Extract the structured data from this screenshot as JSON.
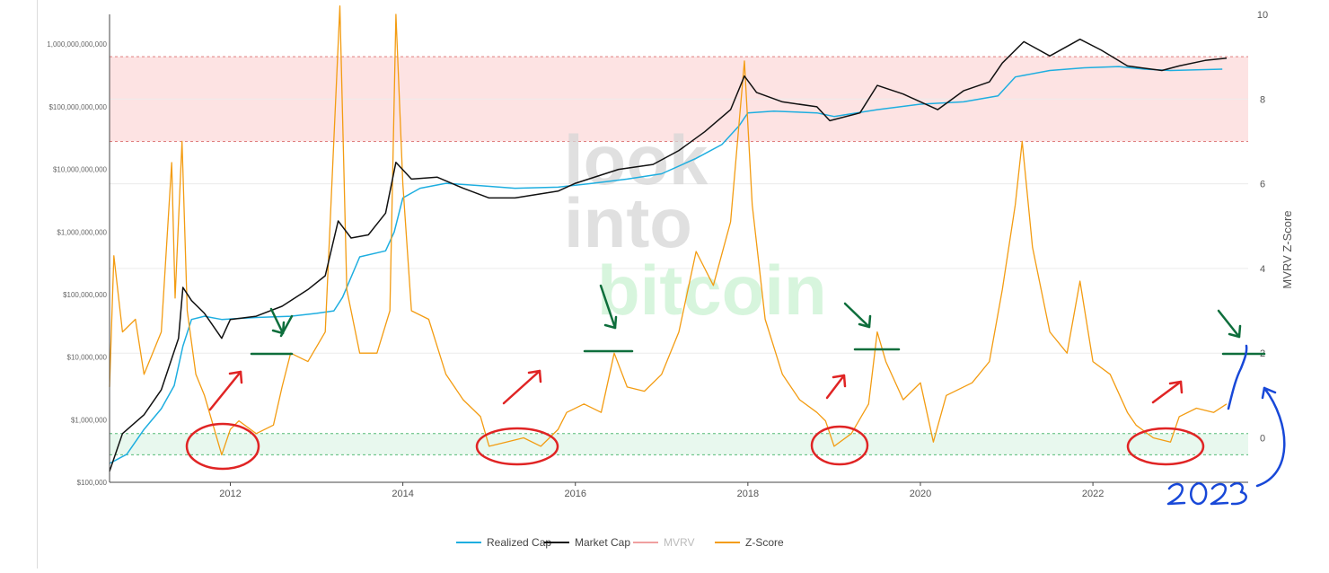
{
  "chart_data": {
    "type": "line",
    "title": "",
    "watermark": [
      "look",
      "into",
      "bitcoin"
    ],
    "x_axis": {
      "ticks": [
        "2012",
        "2014",
        "2016",
        "2018",
        "2020",
        "2022"
      ],
      "range": [
        2010.6,
        2023.8
      ]
    },
    "y_left": {
      "scale": "log",
      "range": [
        100000,
        3000000000000
      ],
      "ticks": [
        {
          "v": 1000000000000,
          "label": "1,000,000,000,000"
        },
        {
          "v": 100000000000,
          "label": "$100,000,000,000"
        },
        {
          "v": 10000000000,
          "label": "$10,000,000,000"
        },
        {
          "v": 1000000000,
          "label": "$1,000,000,000"
        },
        {
          "v": 100000000,
          "label": "$100,000,000"
        },
        {
          "v": 10000000,
          "label": "$10,000,000"
        },
        {
          "v": 1000000,
          "label": "$1,000,000"
        },
        {
          "v": 100000,
          "label": "$100,000"
        }
      ]
    },
    "y_right": {
      "label": "MVRV Z-Score",
      "range": [
        -1.05,
        10
      ],
      "ticks": [
        0,
        2,
        4,
        6,
        8,
        10
      ]
    },
    "bands": [
      {
        "name": "overvalued",
        "from": 7,
        "to": 9,
        "color": "#fde3e3",
        "line": "#e08080"
      },
      {
        "name": "undervalued",
        "from": -0.4,
        "to": 0.1,
        "color": "#e8f8ee",
        "line": "#55bb77"
      }
    ],
    "legend": {
      "position": "bottom-center",
      "items": [
        {
          "label": "Realized Cap",
          "color": "#1eaee0",
          "muted": false
        },
        {
          "label": "Market Cap",
          "color": "#111111",
          "muted": false
        },
        {
          "label": "MVRV",
          "color": "#f0a0a0",
          "muted": true
        },
        {
          "label": "Z-Score",
          "color": "#f39c12",
          "muted": false
        }
      ]
    },
    "series": [
      {
        "name": "Realized Cap",
        "axis": "left",
        "color": "#1eaee0",
        "points": [
          [
            2010.6,
            200000
          ],
          [
            2010.8,
            280000
          ],
          [
            2011.0,
            700000
          ],
          [
            2011.2,
            1500000
          ],
          [
            2011.35,
            3500000
          ],
          [
            2011.45,
            15000000
          ],
          [
            2011.55,
            40000000
          ],
          [
            2011.7,
            45000000
          ],
          [
            2011.9,
            40000000
          ],
          [
            2012.3,
            43000000
          ],
          [
            2012.7,
            45000000
          ],
          [
            2013.0,
            50000000
          ],
          [
            2013.2,
            55000000
          ],
          [
            2013.3,
            90000000
          ],
          [
            2013.5,
            400000000
          ],
          [
            2013.8,
            500000000
          ],
          [
            2013.9,
            1000000000
          ],
          [
            2014.0,
            3500000000
          ],
          [
            2014.2,
            5000000000
          ],
          [
            2014.5,
            6000000000
          ],
          [
            2014.9,
            5500000000
          ],
          [
            2015.3,
            5000000000
          ],
          [
            2015.8,
            5200000000
          ],
          [
            2016.2,
            6000000000
          ],
          [
            2016.6,
            7000000000
          ],
          [
            2017.0,
            8500000000
          ],
          [
            2017.4,
            15000000000
          ],
          [
            2017.7,
            25000000000
          ],
          [
            2017.9,
            50000000000
          ],
          [
            2018.0,
            80000000000
          ],
          [
            2018.3,
            85000000000
          ],
          [
            2018.8,
            80000000000
          ],
          [
            2019.0,
            70000000000
          ],
          [
            2019.5,
            90000000000
          ],
          [
            2020.0,
            110000000000
          ],
          [
            2020.5,
            120000000000
          ],
          [
            2020.9,
            150000000000
          ],
          [
            2021.1,
            300000000000
          ],
          [
            2021.5,
            380000000000
          ],
          [
            2021.9,
            420000000000
          ],
          [
            2022.3,
            440000000000
          ],
          [
            2022.6,
            400000000000
          ],
          [
            2022.9,
            380000000000
          ],
          [
            2023.2,
            390000000000
          ],
          [
            2023.5,
            400000000000
          ]
        ]
      },
      {
        "name": "Market Cap",
        "axis": "left",
        "color": "#111111",
        "points": [
          [
            2010.6,
            150000
          ],
          [
            2010.75,
            600000
          ],
          [
            2011.0,
            1200000
          ],
          [
            2011.2,
            3000000
          ],
          [
            2011.4,
            20000000
          ],
          [
            2011.45,
            130000000
          ],
          [
            2011.55,
            80000000
          ],
          [
            2011.7,
            50000000
          ],
          [
            2011.9,
            20000000
          ],
          [
            2012.0,
            40000000
          ],
          [
            2012.3,
            45000000
          ],
          [
            2012.6,
            65000000
          ],
          [
            2012.9,
            120000000
          ],
          [
            2013.1,
            200000000
          ],
          [
            2013.25,
            1500000000
          ],
          [
            2013.4,
            800000000
          ],
          [
            2013.6,
            900000000
          ],
          [
            2013.8,
            2000000000
          ],
          [
            2013.92,
            13000000000
          ],
          [
            2014.1,
            7000000000
          ],
          [
            2014.4,
            7500000000
          ],
          [
            2014.7,
            5000000000
          ],
          [
            2015.0,
            3500000000
          ],
          [
            2015.3,
            3500000000
          ],
          [
            2015.8,
            4500000000
          ],
          [
            2016.0,
            6000000000
          ],
          [
            2016.5,
            10000000000
          ],
          [
            2016.9,
            12000000000
          ],
          [
            2017.2,
            20000000000
          ],
          [
            2017.5,
            40000000000
          ],
          [
            2017.8,
            90000000000
          ],
          [
            2017.96,
            310000000000
          ],
          [
            2018.1,
            170000000000
          ],
          [
            2018.4,
            120000000000
          ],
          [
            2018.8,
            100000000000
          ],
          [
            2018.95,
            60000000000
          ],
          [
            2019.3,
            80000000000
          ],
          [
            2019.5,
            220000000000
          ],
          [
            2019.8,
            160000000000
          ],
          [
            2020.2,
            90000000000
          ],
          [
            2020.5,
            180000000000
          ],
          [
            2020.8,
            250000000000
          ],
          [
            2020.95,
            500000000000
          ],
          [
            2021.2,
            1100000000000
          ],
          [
            2021.5,
            650000000000
          ],
          [
            2021.85,
            1200000000000
          ],
          [
            2022.1,
            800000000000
          ],
          [
            2022.4,
            450000000000
          ],
          [
            2022.8,
            380000000000
          ],
          [
            2023.0,
            450000000000
          ],
          [
            2023.3,
            550000000000
          ],
          [
            2023.55,
            600000000000
          ]
        ]
      },
      {
        "name": "Z-Score",
        "axis": "right",
        "color": "#f39c12",
        "points": [
          [
            2010.6,
            1.2
          ],
          [
            2010.65,
            4.3
          ],
          [
            2010.75,
            2.5
          ],
          [
            2010.9,
            2.8
          ],
          [
            2011.0,
            1.5
          ],
          [
            2011.1,
            2.0
          ],
          [
            2011.2,
            2.5
          ],
          [
            2011.32,
            6.5
          ],
          [
            2011.36,
            3.3
          ],
          [
            2011.44,
            7.0
          ],
          [
            2011.5,
            3.0
          ],
          [
            2011.6,
            1.5
          ],
          [
            2011.7,
            1.0
          ],
          [
            2011.8,
            0.3
          ],
          [
            2011.9,
            -0.4
          ],
          [
            2012.0,
            0.2
          ],
          [
            2012.1,
            0.4
          ],
          [
            2012.3,
            0.1
          ],
          [
            2012.5,
            0.3
          ],
          [
            2012.6,
            1.2
          ],
          [
            2012.7,
            2.0
          ],
          [
            2012.9,
            1.8
          ],
          [
            2013.1,
            2.5
          ],
          [
            2013.27,
            10.2
          ],
          [
            2013.35,
            3.5
          ],
          [
            2013.5,
            2.0
          ],
          [
            2013.7,
            2.0
          ],
          [
            2013.85,
            3.0
          ],
          [
            2013.92,
            10.0
          ],
          [
            2014.0,
            6.0
          ],
          [
            2014.1,
            3.0
          ],
          [
            2014.3,
            2.8
          ],
          [
            2014.5,
            1.5
          ],
          [
            2014.7,
            0.9
          ],
          [
            2014.9,
            0.5
          ],
          [
            2015.0,
            -0.2
          ],
          [
            2015.2,
            -0.1
          ],
          [
            2015.4,
            0.0
          ],
          [
            2015.6,
            -0.2
          ],
          [
            2015.8,
            0.2
          ],
          [
            2015.9,
            0.6
          ],
          [
            2016.1,
            0.8
          ],
          [
            2016.3,
            0.6
          ],
          [
            2016.45,
            2.0
          ],
          [
            2016.6,
            1.2
          ],
          [
            2016.8,
            1.1
          ],
          [
            2017.0,
            1.5
          ],
          [
            2017.2,
            2.5
          ],
          [
            2017.4,
            4.4
          ],
          [
            2017.6,
            3.6
          ],
          [
            2017.8,
            5.1
          ],
          [
            2017.96,
            8.9
          ],
          [
            2018.05,
            5.5
          ],
          [
            2018.2,
            2.8
          ],
          [
            2018.4,
            1.5
          ],
          [
            2018.6,
            0.9
          ],
          [
            2018.8,
            0.6
          ],
          [
            2018.9,
            0.4
          ],
          [
            2019.0,
            -0.2
          ],
          [
            2019.2,
            0.1
          ],
          [
            2019.4,
            0.8
          ],
          [
            2019.5,
            2.5
          ],
          [
            2019.6,
            1.8
          ],
          [
            2019.8,
            0.9
          ],
          [
            2020.0,
            1.3
          ],
          [
            2020.15,
            -0.1
          ],
          [
            2020.3,
            1.0
          ],
          [
            2020.6,
            1.3
          ],
          [
            2020.8,
            1.8
          ],
          [
            2020.95,
            3.5
          ],
          [
            2021.1,
            5.5
          ],
          [
            2021.18,
            7.0
          ],
          [
            2021.3,
            4.5
          ],
          [
            2021.5,
            2.5
          ],
          [
            2021.7,
            2.0
          ],
          [
            2021.85,
            3.7
          ],
          [
            2022.0,
            1.8
          ],
          [
            2022.2,
            1.5
          ],
          [
            2022.4,
            0.6
          ],
          [
            2022.5,
            0.3
          ],
          [
            2022.7,
            0.0
          ],
          [
            2022.9,
            -0.1
          ],
          [
            2023.0,
            0.5
          ],
          [
            2023.2,
            0.7
          ],
          [
            2023.4,
            0.6
          ],
          [
            2023.55,
            0.8
          ]
        ]
      }
    ]
  }
}
